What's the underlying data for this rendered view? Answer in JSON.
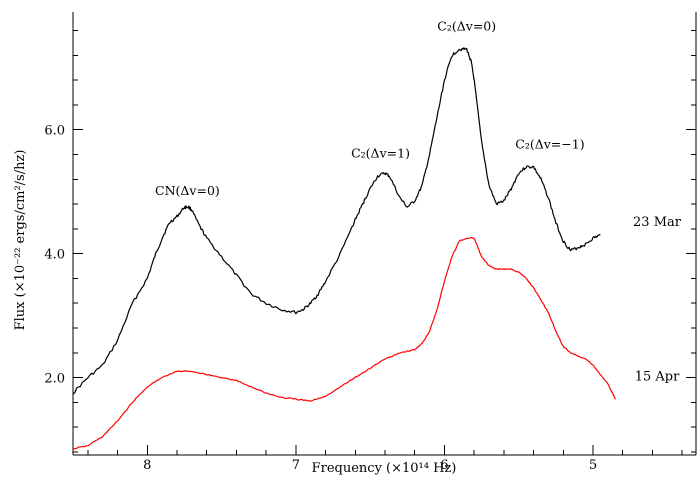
{
  "chart_data": {
    "type": "line",
    "xlabel": "Frequency (×10¹⁴ Hz)",
    "ylabel": "Flux (×10⁻²² ergs/cm²/s/hz)",
    "xlim": [
      8.5,
      4.3
    ],
    "ylim": [
      0.75,
      7.9
    ],
    "x_ticks": [
      8,
      7,
      6,
      5
    ],
    "x_tick_labels": [
      "8",
      "7",
      "6",
      "5"
    ],
    "y_ticks": [
      2.0,
      4.0,
      6.0
    ],
    "y_tick_labels": [
      "2.0",
      "4.0",
      "6.0"
    ],
    "grid": false,
    "series": [
      {
        "name": "23 Mar",
        "color": "#000000",
        "x": [
          8.5,
          8.4,
          8.3,
          8.2,
          8.1,
          8.0,
          7.95,
          7.9,
          7.85,
          7.8,
          7.75,
          7.72,
          7.7,
          7.65,
          7.6,
          7.5,
          7.4,
          7.3,
          7.2,
          7.1,
          7.0,
          6.95,
          6.9,
          6.85,
          6.8,
          6.7,
          6.6,
          6.55,
          6.5,
          6.45,
          6.4,
          6.37,
          6.3,
          6.25,
          6.2,
          6.15,
          6.1,
          6.05,
          6.0,
          5.95,
          5.9,
          5.85,
          5.82,
          5.8,
          5.75,
          5.7,
          5.65,
          5.6,
          5.55,
          5.5,
          5.45,
          5.4,
          5.35,
          5.3,
          5.25,
          5.2,
          5.15,
          5.1,
          5.05,
          5.0,
          4.95
        ],
        "values": [
          1.75,
          2.0,
          2.2,
          2.6,
          3.2,
          3.6,
          3.95,
          4.25,
          4.5,
          4.6,
          4.75,
          4.75,
          4.7,
          4.45,
          4.25,
          3.95,
          3.65,
          3.35,
          3.2,
          3.1,
          3.05,
          3.1,
          3.2,
          3.35,
          3.55,
          4.0,
          4.55,
          4.8,
          5.05,
          5.25,
          5.3,
          5.25,
          4.9,
          4.75,
          4.85,
          5.1,
          5.6,
          6.2,
          6.8,
          7.2,
          7.3,
          7.3,
          7.1,
          6.8,
          5.8,
          5.1,
          4.8,
          4.85,
          5.05,
          5.3,
          5.4,
          5.4,
          5.2,
          4.9,
          4.5,
          4.2,
          4.05,
          4.1,
          4.15,
          4.25,
          4.3
        ]
      },
      {
        "name": "15 Apr",
        "color": "#ff0000",
        "x": [
          8.5,
          8.4,
          8.3,
          8.2,
          8.1,
          8.0,
          7.9,
          7.8,
          7.7,
          7.6,
          7.5,
          7.4,
          7.3,
          7.2,
          7.1,
          7.0,
          6.9,
          6.8,
          6.7,
          6.6,
          6.5,
          6.4,
          6.3,
          6.2,
          6.15,
          6.1,
          6.05,
          6.0,
          5.95,
          5.9,
          5.85,
          5.8,
          5.75,
          5.7,
          5.65,
          5.6,
          5.55,
          5.5,
          5.45,
          5.4,
          5.35,
          5.3,
          5.25,
          5.2,
          5.15,
          5.1,
          5.05,
          5.0,
          4.95,
          4.9,
          4.85
        ],
        "values": [
          0.85,
          0.9,
          1.05,
          1.3,
          1.6,
          1.85,
          2.0,
          2.1,
          2.1,
          2.05,
          2.0,
          1.95,
          1.85,
          1.75,
          1.68,
          1.65,
          1.62,
          1.7,
          1.85,
          2.0,
          2.15,
          2.3,
          2.4,
          2.45,
          2.55,
          2.75,
          3.1,
          3.55,
          3.95,
          4.2,
          4.25,
          4.25,
          3.95,
          3.8,
          3.75,
          3.75,
          3.75,
          3.7,
          3.6,
          3.45,
          3.25,
          3.05,
          2.75,
          2.5,
          2.4,
          2.35,
          2.3,
          2.2,
          2.05,
          1.9,
          1.65
        ]
      }
    ],
    "annotations": [
      {
        "text": "CN(Δv=0)",
        "x": 7.73,
        "y": 4.95
      },
      {
        "text": "C₂(Δv=1)",
        "x": 6.43,
        "y": 5.55
      },
      {
        "text": "C₂(Δv=0)",
        "x": 5.85,
        "y": 7.6
      },
      {
        "text": "C₂(Δv=−1)",
        "x": 5.29,
        "y": 5.7
      }
    ],
    "series_labels": [
      {
        "text": "23 Mar",
        "y": 4.45
      },
      {
        "text": "15 Apr",
        "y": 1.95
      }
    ]
  }
}
